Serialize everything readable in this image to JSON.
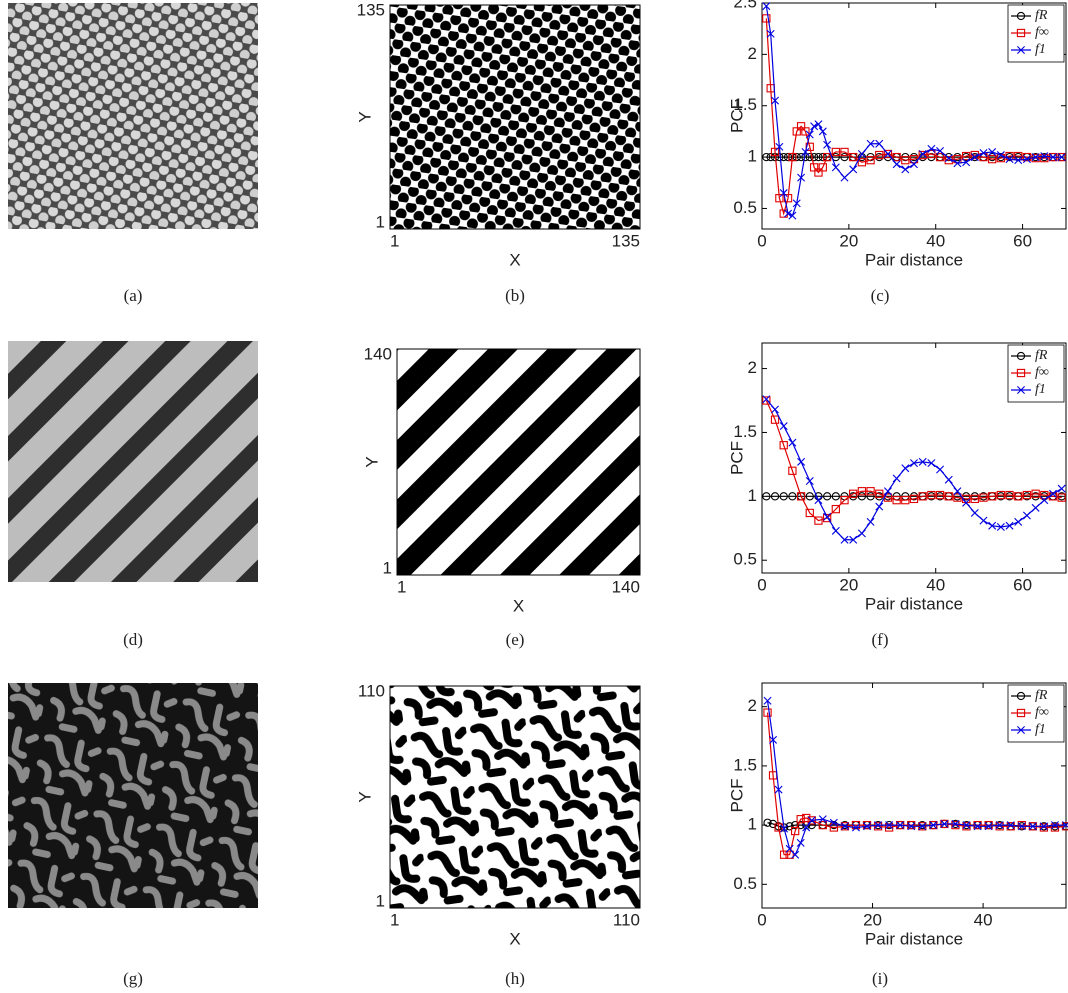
{
  "chart_data": [
    {
      "type": "image",
      "caption": "(a)"
    },
    {
      "type": "binary-map",
      "caption": "(b)",
      "xlabel": "X",
      "ylabel": "Y",
      "xlim": [
        1,
        135
      ],
      "ylim": [
        1,
        135
      ],
      "xticks": [
        1,
        135
      ],
      "yticks": [
        1,
        135
      ]
    },
    {
      "type": "line",
      "caption": "(c)",
      "xlabel": "Pair distance",
      "ylabel": "PCF",
      "xlim": [
        0,
        70
      ],
      "ylim": [
        0.3,
        2.5
      ],
      "xticks": [
        0,
        20,
        40,
        60
      ],
      "yticks": [
        0.5,
        1,
        1.5,
        2,
        2.5
      ],
      "legend": "upper right",
      "x": [
        1,
        2,
        3,
        4,
        5,
        6,
        7,
        8,
        9,
        10,
        11,
        12,
        13,
        14,
        15,
        17,
        19,
        21,
        23,
        25,
        27,
        29,
        31,
        33,
        35,
        37,
        39,
        41,
        43,
        45,
        47,
        49,
        51,
        53,
        55,
        57,
        59,
        61,
        63,
        65,
        67,
        69
      ],
      "series": [
        {
          "name": "fR",
          "color": "#000000",
          "marker": "o",
          "values": [
            1,
            1,
            1,
            1,
            1,
            1,
            1,
            1,
            1,
            1,
            1,
            1,
            1,
            1,
            1,
            1,
            1,
            1,
            1,
            1,
            1,
            1,
            1,
            1,
            1,
            1,
            1,
            1,
            1,
            1,
            1,
            1,
            1,
            1,
            1,
            1,
            1,
            1,
            1,
            1,
            1,
            1
          ]
        },
        {
          "name": "f∞",
          "color": "#e00000",
          "marker": "s",
          "values": [
            2.35,
            1.67,
            1.05,
            0.6,
            0.45,
            0.6,
            1.0,
            1.25,
            1.3,
            1.25,
            1.1,
            0.9,
            0.85,
            0.9,
            1.0,
            1.05,
            1.05,
            1.0,
            0.95,
            0.97,
            1.02,
            1.03,
            1.0,
            0.97,
            0.98,
            1.02,
            1.03,
            1.0,
            0.97,
            0.98,
            1.01,
            1.02,
            1.0,
            0.98,
            0.99,
            1.01,
            1.01,
            1.0,
            0.99,
            0.99,
            1.0,
            1.0
          ]
        },
        {
          "name": "f1",
          "color": "#0000e0",
          "marker": "x",
          "values": [
            2.47,
            2.2,
            1.55,
            1.1,
            0.65,
            0.45,
            0.43,
            0.55,
            0.8,
            1.05,
            1.22,
            1.3,
            1.32,
            1.25,
            1.12,
            0.9,
            0.8,
            0.88,
            1.03,
            1.13,
            1.13,
            1.03,
            0.93,
            0.88,
            0.93,
            1.03,
            1.08,
            1.06,
            0.99,
            0.94,
            0.95,
            1.0,
            1.04,
            1.05,
            1.02,
            0.98,
            0.97,
            0.98,
            1.0,
            1.01,
            1.0,
            1.0
          ]
        }
      ]
    },
    {
      "type": "image",
      "caption": "(d)"
    },
    {
      "type": "binary-map",
      "caption": "(e)",
      "xlabel": "X",
      "ylabel": "Y",
      "xlim": [
        1,
        140
      ],
      "ylim": [
        1,
        140
      ],
      "xticks": [
        1,
        140
      ],
      "yticks": [
        1,
        140
      ]
    },
    {
      "type": "line",
      "caption": "(f)",
      "xlabel": "Pair distance",
      "ylabel": "PCF",
      "xlim": [
        0,
        70
      ],
      "ylim": [
        0.4,
        2.2
      ],
      "xticks": [
        0,
        20,
        40,
        60
      ],
      "yticks": [
        0.5,
        1,
        1.5,
        2
      ],
      "legend": "upper right",
      "x": [
        1,
        3,
        5,
        7,
        9,
        11,
        13,
        15,
        17,
        19,
        21,
        23,
        25,
        27,
        29,
        31,
        33,
        35,
        37,
        39,
        41,
        43,
        45,
        47,
        49,
        51,
        53,
        55,
        57,
        59,
        61,
        63,
        65,
        67,
        69
      ],
      "series": [
        {
          "name": "fR",
          "color": "#000000",
          "marker": "o",
          "values": [
            1,
            1,
            1,
            1,
            1,
            1,
            1,
            1,
            1,
            1,
            1,
            1,
            1,
            1,
            1,
            1,
            1,
            1,
            1,
            1,
            1,
            1,
            1,
            1,
            1,
            1,
            1,
            1,
            1,
            1,
            1,
            1,
            1,
            1,
            1
          ]
        },
        {
          "name": "f∞",
          "color": "#e00000",
          "marker": "s",
          "values": [
            1.75,
            1.6,
            1.4,
            1.2,
            1.0,
            0.87,
            0.81,
            0.83,
            0.9,
            0.97,
            1.02,
            1.04,
            1.04,
            1.02,
            0.99,
            0.97,
            0.97,
            0.98,
            1.0,
            1.01,
            1.01,
            1.0,
            0.99,
            0.98,
            0.98,
            0.99,
            1.0,
            1.01,
            1.01,
            1.0,
            1.01,
            1.02,
            1.01,
            1.0,
            0.99
          ]
        },
        {
          "name": "f1",
          "color": "#0000e0",
          "marker": "x",
          "values": [
            1.76,
            1.68,
            1.55,
            1.42,
            1.27,
            1.12,
            0.97,
            0.84,
            0.73,
            0.66,
            0.66,
            0.71,
            0.8,
            0.92,
            1.04,
            1.14,
            1.22,
            1.26,
            1.27,
            1.26,
            1.21,
            1.13,
            1.04,
            0.95,
            0.87,
            0.81,
            0.77,
            0.76,
            0.77,
            0.8,
            0.85,
            0.91,
            0.97,
            1.02,
            1.06
          ]
        }
      ]
    },
    {
      "type": "image",
      "caption": "(g)"
    },
    {
      "type": "binary-map",
      "caption": "(h)",
      "xlabel": "X",
      "ylabel": "Y",
      "xlim": [
        1,
        110
      ],
      "ylim": [
        1,
        110
      ],
      "xticks": [
        1,
        110
      ],
      "yticks": [
        1,
        110
      ]
    },
    {
      "type": "line",
      "caption": "(i)",
      "xlabel": "Pair distance",
      "ylabel": "PCF",
      "xlim": [
        0,
        55
      ],
      "ylim": [
        0.3,
        2.2
      ],
      "xticks": [
        0,
        20,
        40
      ],
      "yticks": [
        0.5,
        1,
        1.5,
        2
      ],
      "legend": "upper right",
      "x": [
        1,
        2,
        3,
        4,
        5,
        6,
        7,
        8,
        9,
        11,
        13,
        15,
        17,
        19,
        21,
        23,
        25,
        27,
        29,
        31,
        33,
        35,
        37,
        39,
        41,
        43,
        45,
        47,
        49,
        51,
        53,
        55
      ],
      "series": [
        {
          "name": "fR",
          "color": "#000000",
          "marker": "o",
          "values": [
            1.02,
            1.01,
            0.99,
            0.98,
            0.99,
            1.0,
            1.0,
            1.0,
            1.0,
            1.0,
            1.0,
            1.0,
            1.0,
            1.0,
            1.0,
            1.0,
            1.0,
            1.0,
            1.0,
            1.0,
            1.01,
            1.01,
            1.0,
            1.0,
            1.0,
            1.0,
            0.99,
            0.99,
            0.99,
            0.99,
            0.99,
            0.99
          ]
        },
        {
          "name": "f∞",
          "color": "#e00000",
          "marker": "s",
          "values": [
            1.95,
            1.42,
            0.98,
            0.75,
            0.75,
            0.95,
            1.05,
            1.06,
            1.04,
            1.0,
            0.98,
            0.99,
            1.0,
            1.0,
            0.99,
            0.98,
            1.0,
            1.0,
            0.99,
            1.0,
            1.01,
            1.0,
            0.99,
            1.0,
            1.0,
            0.99,
            0.99,
            1.0,
            0.99,
            0.98,
            0.98,
            0.99
          ]
        },
        {
          "name": "f1",
          "color": "#0000e0",
          "marker": "x",
          "values": [
            2.05,
            1.72,
            1.3,
            0.97,
            0.8,
            0.75,
            0.85,
            0.98,
            1.04,
            1.05,
            1.02,
            0.99,
            0.98,
            0.99,
            1.0,
            1.0,
            1.0,
            0.99,
            0.99,
            1.0,
            1.01,
            1.01,
            1.0,
            0.99,
            0.99,
            1.0,
            1.0,
            0.99,
            0.99,
            0.99,
            1.0,
            1.0
          ]
        }
      ]
    }
  ]
}
